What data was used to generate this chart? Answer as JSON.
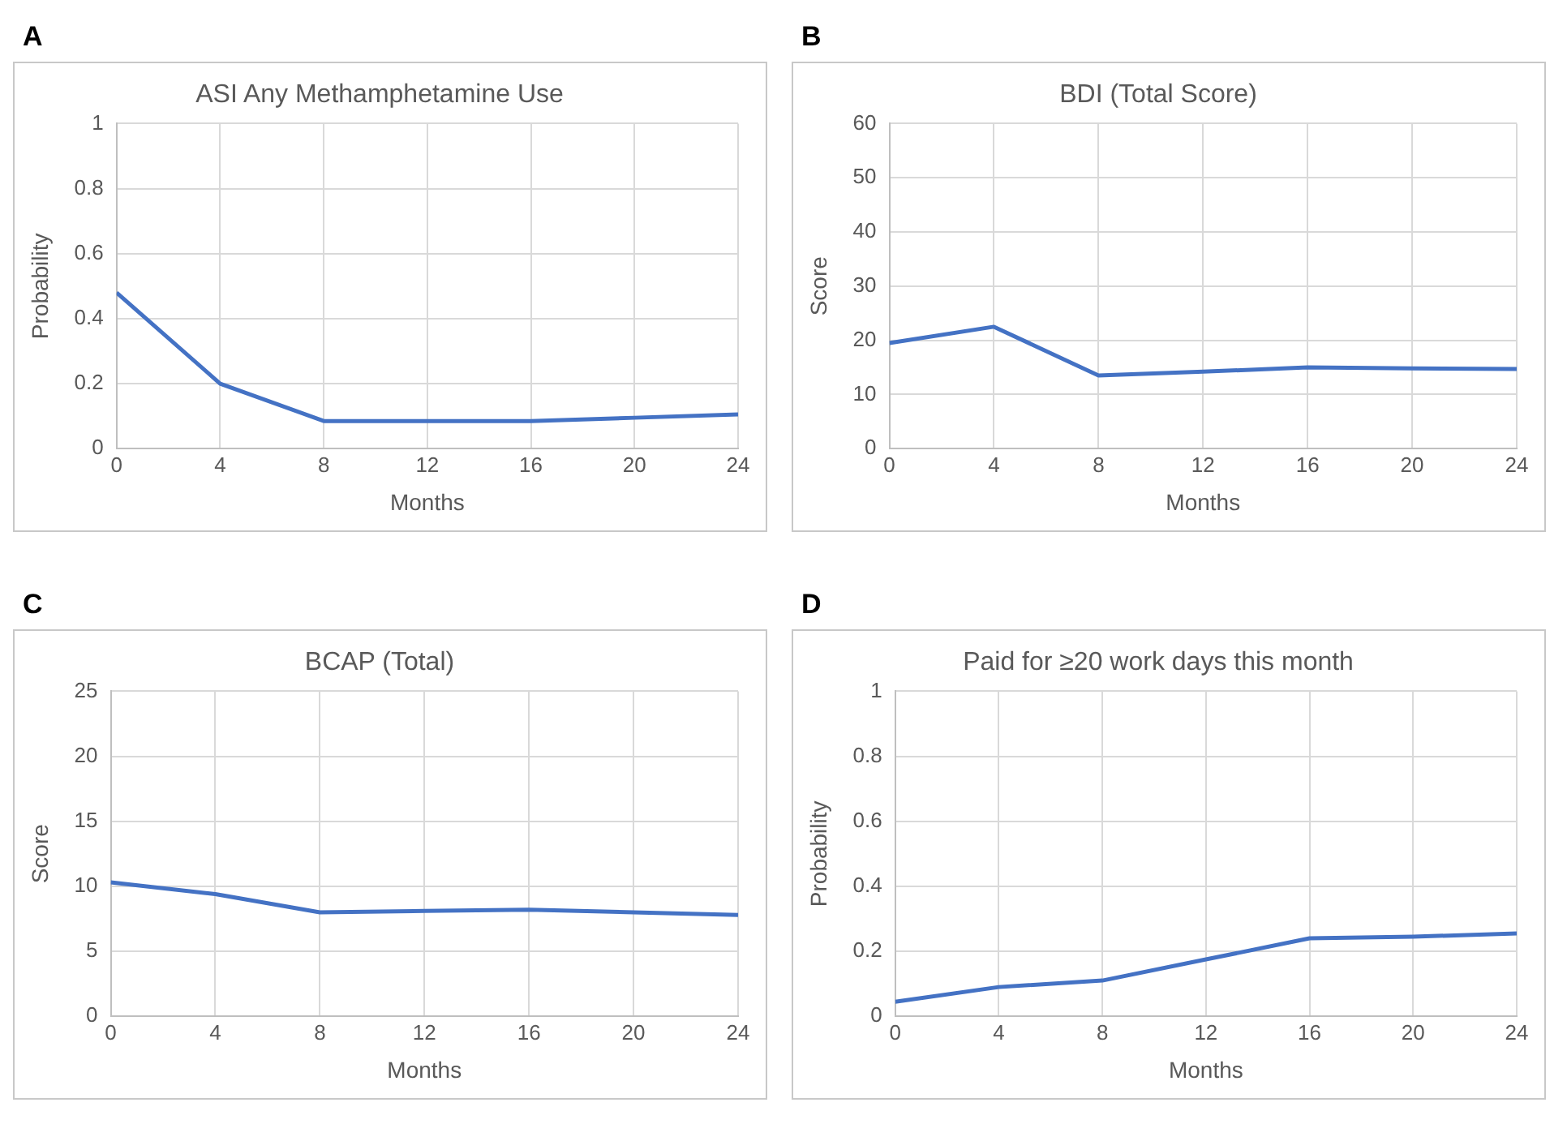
{
  "chart_data": [
    {
      "type": "line",
      "title": "ASI Any Methamphetamine Use",
      "xlabel": "Months",
      "ylabel": "Probability",
      "annotations": [
        "A"
      ],
      "x": [
        0,
        4,
        8,
        12,
        16,
        20,
        24
      ],
      "series": [
        {
          "color": "#4472c4",
          "values": [
            0.48,
            0.2,
            0.085,
            0.085,
            0.085,
            0.095,
            0.105
          ]
        }
      ],
      "xlim": [
        0,
        24
      ],
      "xticks": [
        0,
        4,
        8,
        12,
        16,
        20,
        24
      ],
      "ylim": [
        0,
        1
      ],
      "yticks": [
        0,
        0.2,
        0.4,
        0.6,
        0.8,
        1
      ],
      "grid": true,
      "legend": false,
      "marker": "none",
      "line_style": "solid"
    },
    {
      "type": "line",
      "title": "BDI (Total Score)",
      "xlabel": "Months",
      "ylabel": "Score",
      "annotations": [
        "B"
      ],
      "x": [
        0,
        4,
        8,
        12,
        16,
        20,
        24
      ],
      "series": [
        {
          "color": "#4472c4",
          "values": [
            19.5,
            22.5,
            13.5,
            14.2,
            15,
            14.8,
            14.7
          ]
        }
      ],
      "xlim": [
        0,
        24
      ],
      "xticks": [
        0,
        4,
        8,
        12,
        16,
        20,
        24
      ],
      "ylim": [
        0,
        60
      ],
      "yticks": [
        0,
        10,
        20,
        30,
        40,
        50,
        60
      ],
      "grid": true,
      "legend": false,
      "marker": "none",
      "line_style": "solid"
    },
    {
      "type": "line",
      "title": "BCAP (Total)",
      "xlabel": "Months",
      "ylabel": "Score",
      "annotations": [
        "C"
      ],
      "x": [
        0,
        4,
        8,
        12,
        16,
        20,
        24
      ],
      "series": [
        {
          "color": "#4472c4",
          "values": [
            10.3,
            9.4,
            8.0,
            8.1,
            8.2,
            8.0,
            7.8
          ]
        }
      ],
      "xlim": [
        0,
        24
      ],
      "xticks": [
        0,
        4,
        8,
        12,
        16,
        20,
        24
      ],
      "ylim": [
        0,
        25
      ],
      "yticks": [
        0,
        5,
        10,
        15,
        20,
        25
      ],
      "grid": true,
      "legend": false,
      "marker": "none",
      "line_style": "solid"
    },
    {
      "type": "line",
      "title": "Paid for ≥20 work days this month",
      "xlabel": "Months",
      "ylabel": "Probability",
      "annotations": [
        "D"
      ],
      "x": [
        0,
        4,
        8,
        12,
        16,
        20,
        24
      ],
      "series": [
        {
          "color": "#4472c4",
          "values": [
            0.045,
            0.09,
            0.11,
            0.175,
            0.24,
            0.245,
            0.255
          ]
        }
      ],
      "xlim": [
        0,
        24
      ],
      "xticks": [
        0,
        4,
        8,
        12,
        16,
        20,
        24
      ],
      "ylim": [
        0,
        1
      ],
      "yticks": [
        0,
        0.2,
        0.4,
        0.6,
        0.8,
        1
      ],
      "grid": true,
      "legend": false,
      "marker": "none",
      "line_style": "solid"
    }
  ]
}
